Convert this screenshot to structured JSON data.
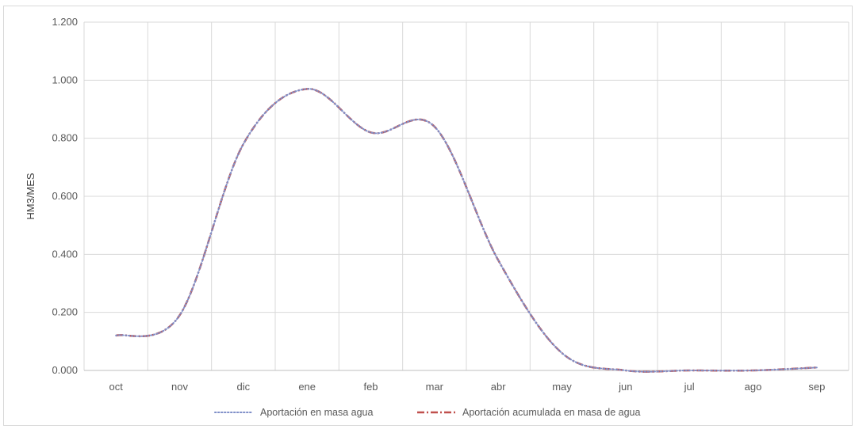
{
  "chart_data": {
    "type": "line",
    "title": "",
    "xlabel": "",
    "ylabel": "HM3/MES",
    "categories": [
      "oct",
      "nov",
      "dic",
      "ene",
      "feb",
      "mar",
      "abr",
      "may",
      "jun",
      "jul",
      "ago",
      "sep"
    ],
    "y_ticks": [
      "0.000",
      "0.200",
      "0.400",
      "0.600",
      "0.800",
      "1.000",
      "1.200"
    ],
    "ylim": [
      0,
      1.2
    ],
    "grid": true,
    "legend_position": "bottom",
    "series": [
      {
        "name": "Aportación en masa agua",
        "color": "#7f8fc8",
        "dash": "dotted",
        "values": [
          0.12,
          0.19,
          0.78,
          0.97,
          0.82,
          0.84,
          0.38,
          0.06,
          0.0,
          0.0,
          0.0,
          0.01
        ]
      },
      {
        "name": "Aportación acumulada en masa de agua",
        "color": "#c0504d",
        "dash": "dash-dot",
        "values": [
          0.12,
          0.19,
          0.78,
          0.97,
          0.82,
          0.84,
          0.38,
          0.06,
          0.0,
          0.0,
          0.0,
          0.01
        ]
      }
    ]
  }
}
